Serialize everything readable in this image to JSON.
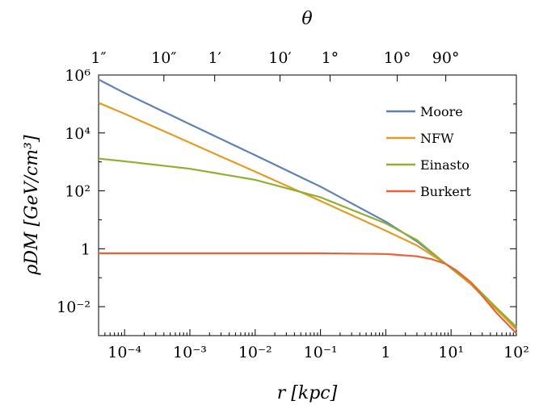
{
  "chart_data": {
    "type": "line",
    "xscale": "log",
    "yscale": "log",
    "xlim": [
      4e-05,
      100
    ],
    "ylim": [
      0.001,
      1000000
    ],
    "xlabel": "r [kpc]",
    "ylabel": "ρDM [GeV/cm³]",
    "top_axis_label": "θ",
    "x_ticks": [
      {
        "value": 0.0001,
        "label": "10⁻⁴"
      },
      {
        "value": 0.001,
        "label": "10⁻³"
      },
      {
        "value": 0.01,
        "label": "10⁻²"
      },
      {
        "value": 0.1,
        "label": "10⁻¹"
      },
      {
        "value": 1,
        "label": "1"
      },
      {
        "value": 10,
        "label": "10¹"
      },
      {
        "value": 100,
        "label": "10²"
      }
    ],
    "y_ticks": [
      {
        "value": 0.01,
        "label": "10⁻²"
      },
      {
        "value": 1,
        "label": "1"
      },
      {
        "value": 100,
        "label": "10²"
      },
      {
        "value": 10000,
        "label": "10⁴"
      },
      {
        "value": 1000000,
        "label": "10⁶"
      }
    ],
    "top_ticks": [
      {
        "value": 4e-05,
        "label": "1″"
      },
      {
        "value": 0.0004,
        "label": "10″"
      },
      {
        "value": 0.0024,
        "label": "1′"
      },
      {
        "value": 0.024,
        "label": "10′"
      },
      {
        "value": 0.14,
        "label": "1°"
      },
      {
        "value": 1.5,
        "label": "10°"
      },
      {
        "value": 8.3,
        "label": "90°"
      }
    ],
    "legend_position": "top-right",
    "series": [
      {
        "name": "Moore",
        "color": "#5e81b5",
        "x": [
          4e-05,
          0.0001,
          0.001,
          0.01,
          0.1,
          1,
          3,
          8.3,
          20,
          50,
          100
        ],
        "y": [
          700000,
          240000,
          20000,
          1700,
          140,
          8.6,
          1.8,
          0.3,
          0.06,
          0.008,
          0.0018
        ]
      },
      {
        "name": "NFW",
        "color": "#e19c24",
        "x": [
          4e-05,
          0.0001,
          0.001,
          0.01,
          0.1,
          1,
          3,
          8.3,
          20,
          50,
          100
        ],
        "y": [
          110000,
          46000,
          4600,
          460,
          45,
          4.2,
          1.3,
          0.3,
          0.06,
          0.008,
          0.0016
        ]
      },
      {
        "name": "Einasto",
        "color": "#8fb032",
        "x": [
          4e-05,
          0.0001,
          0.001,
          0.01,
          0.1,
          1,
          3,
          8.3,
          20,
          50,
          100
        ],
        "y": [
          1300,
          1050,
          580,
          240,
          60,
          7.5,
          2,
          0.3,
          0.07,
          0.009,
          0.002
        ]
      },
      {
        "name": "Burkert",
        "color": "#eb6235",
        "x": [
          4e-05,
          0.001,
          0.1,
          1,
          3,
          5,
          8.3,
          12,
          20,
          50,
          100
        ],
        "y": [
          0.7,
          0.7,
          0.7,
          0.66,
          0.55,
          0.44,
          0.3,
          0.18,
          0.07,
          0.006,
          0.0012
        ]
      }
    ]
  }
}
